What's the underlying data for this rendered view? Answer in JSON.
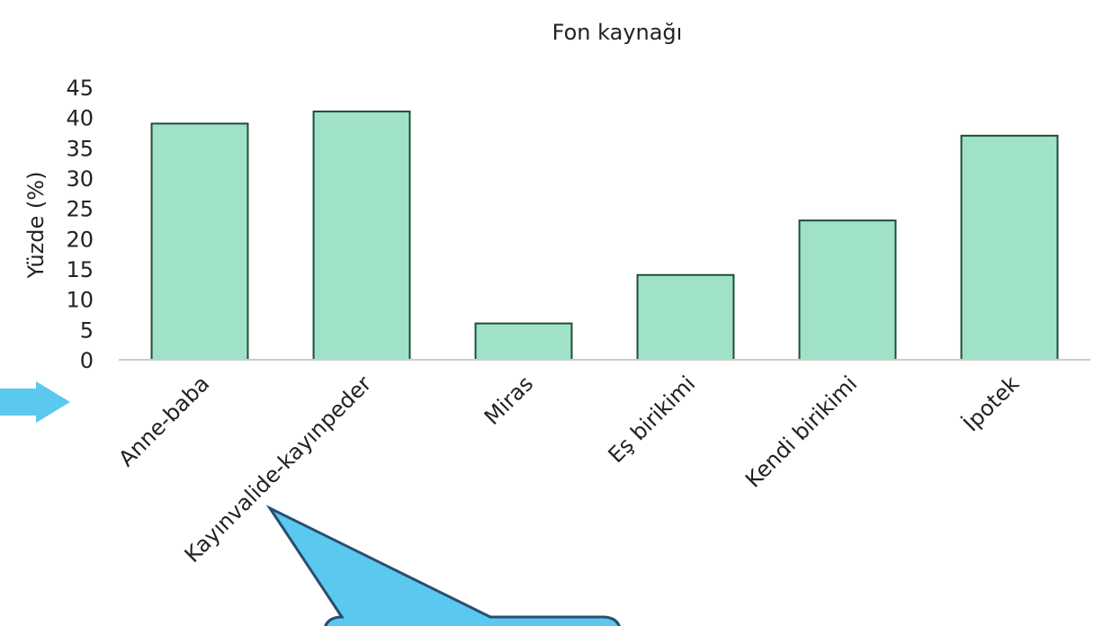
{
  "chart_data": {
    "type": "bar",
    "title": "Fon kaynağı",
    "y_label": "Yüzde (%)",
    "categories": [
      "Anne-baba",
      "Kayınvalide-kayınpeder",
      "Miras",
      "Eş birikimi",
      "Kendi birikimi",
      "İpotek"
    ],
    "values": [
      39,
      41,
      6,
      14,
      23,
      37
    ],
    "color": "#a0e2c8",
    "ylim": [
      0,
      45
    ],
    "yticks": [
      0,
      5,
      10,
      15,
      20,
      25,
      30,
      35,
      40,
      45
    ],
    "grid": false
  }
}
